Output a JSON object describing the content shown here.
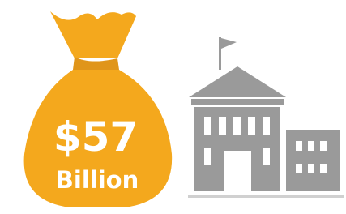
{
  "bag": {
    "amount": "$57",
    "unit": "Billion"
  }
}
